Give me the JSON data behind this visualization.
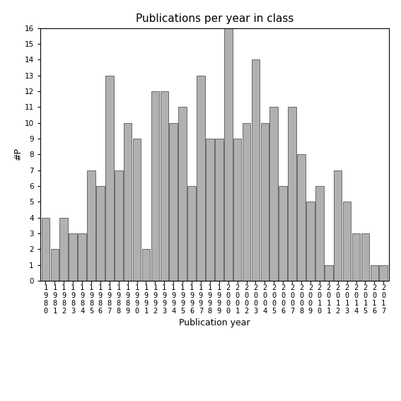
{
  "title": "Publications per year in class",
  "xlabel": "Publication year",
  "ylabel": "#P",
  "years": [
    "1980",
    "1981",
    "1982",
    "1983",
    "1984",
    "1985",
    "1986",
    "1987",
    "1988",
    "1989",
    "1990",
    "1991",
    "1992",
    "1993",
    "1994",
    "1995",
    "1996",
    "1997",
    "1998",
    "1999",
    "2000",
    "2001",
    "2002",
    "2003",
    "2004",
    "2005",
    "2006",
    "2007",
    "2008",
    "2009",
    "2010",
    "2011",
    "2012",
    "2013",
    "2014",
    "2015",
    "2016",
    "2017"
  ],
  "values": [
    4,
    2,
    4,
    3,
    3,
    7,
    6,
    13,
    7,
    10,
    9,
    2,
    12,
    12,
    10,
    11,
    6,
    13,
    9,
    9,
    16,
    9,
    10,
    14,
    10,
    11,
    6,
    11,
    8,
    5,
    6,
    1,
    7,
    5,
    3,
    3,
    1,
    1
  ],
  "bar_color": "#b0b0b0",
  "bar_edge_color": "#404040",
  "ylim": [
    0,
    16
  ],
  "yticks": [
    0,
    1,
    2,
    3,
    4,
    5,
    6,
    7,
    8,
    9,
    10,
    11,
    12,
    13,
    14,
    15,
    16
  ],
  "background_color": "#ffffff",
  "title_fontsize": 11,
  "label_fontsize": 9,
  "tick_fontsize": 7.5
}
